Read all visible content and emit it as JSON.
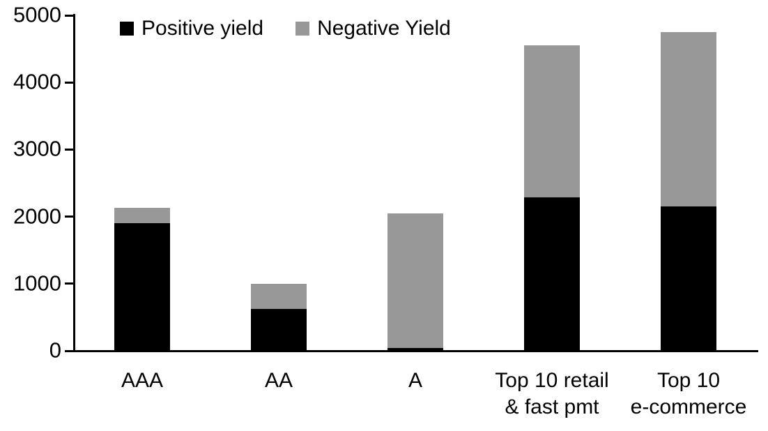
{
  "chart_data": {
    "type": "bar",
    "stacked": true,
    "title": "",
    "xlabel": "",
    "ylabel": "",
    "categories": [
      "AAA",
      "AA",
      "A",
      "Top 10 retail\n& fast pmt",
      "Top 10\ne-commerce"
    ],
    "series": [
      {
        "name": "Positive yield",
        "color": "#000000",
        "values": [
          1900,
          625,
          45,
          2290,
          2150
        ]
      },
      {
        "name": "Negative Yield",
        "color": "#989898",
        "values": [
          230,
          375,
          2000,
          2260,
          2600
        ]
      }
    ],
    "totals": [
      2130,
      1000,
      2045,
      4550,
      4750
    ],
    "ylim": [
      0,
      5000
    ],
    "yticks": [
      0,
      1000,
      2000,
      3000,
      4000,
      5000
    ],
    "grid": false,
    "legend_position": "top-left"
  },
  "colors": {
    "positive": "#000000",
    "negative": "#989898",
    "axis": "#000000",
    "background": "#ffffff"
  }
}
